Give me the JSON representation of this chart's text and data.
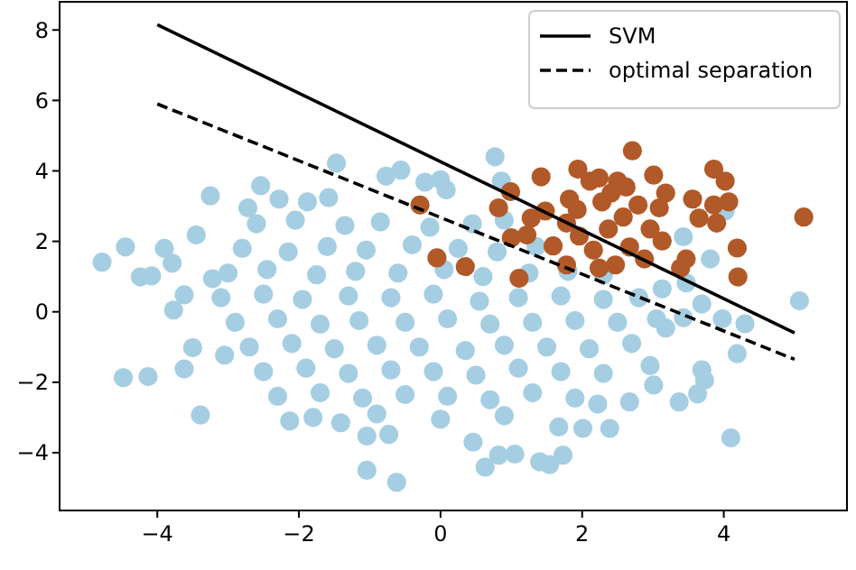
{
  "chart_data": {
    "type": "scatter",
    "xlim": [
      -5.38,
      5.74
    ],
    "ylim": [
      -5.64,
      8.8
    ],
    "xticks": [
      {
        "value": -4,
        "label": "−4"
      },
      {
        "value": -2,
        "label": "−2"
      },
      0,
      2,
      4
    ],
    "yticks": [
      {
        "value": -4,
        "label": "−4"
      },
      {
        "value": -2,
        "label": "−2"
      },
      0,
      2,
      4,
      6,
      8
    ],
    "grid": false,
    "legend": "top right",
    "series": [
      {
        "marker": "circle",
        "color": "#a6cee3",
        "x": [
          -4.78,
          -4.45,
          -4.24,
          -4.08,
          -3.9,
          -3.79,
          -3.77,
          -3.62,
          -3.45,
          -3.25,
          -3.22,
          -4.48,
          -4.13,
          -3.62,
          -3.5,
          -3.39,
          -3.05,
          -2.72,
          -2.54,
          -2.28,
          -2.13,
          -1.88,
          -1.58,
          -1.47,
          -1.41,
          -1.04,
          -1.04,
          -0.77,
          -0.73,
          -0.62,
          -0.56,
          -0.22,
          0,
          0.08,
          0.46,
          0.63,
          0.77,
          0.82,
          1.05,
          0.86,
          1.4,
          1.54,
          1.73,
          1.67,
          2.01,
          2.39,
          2.22,
          2.67,
          3.01,
          2.96,
          3.37,
          3.63,
          3.73,
          3.69,
          4.1,
          4.19,
          4.3,
          5.07,
          3.43,
          3.81,
          4.02,
          3.47,
          3.13,
          3.69,
          3.43,
          3.18,
          3.98,
          -2.6,
          -2.05,
          -1.35,
          -0.85,
          -0.15,
          0.45,
          0.9,
          -2.8,
          -2.15,
          -1.6,
          -1.05,
          -0.4,
          0.25,
          0.8,
          1.35,
          -3,
          -2.45,
          -1.75,
          -1.2,
          -0.6,
          0.05,
          0.6,
          1.25,
          1.8,
          2.3,
          -3.1,
          -2.5,
          -1.95,
          -1.3,
          -0.7,
          -0.1,
          0.55,
          1.1,
          1.7,
          2.3,
          2.8,
          -2.9,
          -2.3,
          -1.7,
          -1.15,
          -0.5,
          0.1,
          0.7,
          1.3,
          1.9,
          2.5,
          3.05,
          -2.7,
          -2.1,
          -1.5,
          -0.9,
          -0.3,
          0.35,
          0.9,
          1.5,
          2.1,
          2.7,
          -2.5,
          -1.9,
          -1.3,
          -0.7,
          -0.1,
          0.5,
          1.1,
          1.7,
          2.3,
          -2.3,
          -1.7,
          -1.1,
          -0.5,
          0.1,
          0.7,
          1.3,
          1.9,
          -1.8,
          -0.9,
          0,
          0.9
        ],
        "values": [
          1.41,
          1.84,
          0.99,
          1.02,
          1.8,
          1.38,
          0.05,
          0.48,
          2.18,
          3.29,
          0.94,
          -1.87,
          -1.84,
          -1.62,
          -1.02,
          -2.93,
          -1.23,
          2.95,
          3.58,
          3.2,
          -3.1,
          3.12,
          3.24,
          4.22,
          -3.15,
          -3.53,
          -4.5,
          3.85,
          -3.48,
          -4.84,
          4.02,
          3.68,
          3.75,
          3.46,
          -3.7,
          -4.41,
          4.4,
          -4.07,
          -4.04,
          3.71,
          -4.26,
          -4.34,
          -4.07,
          -3.27,
          -3.31,
          -3.31,
          -2.62,
          -2.56,
          -2.08,
          -1.53,
          -2.56,
          -2.33,
          -1.94,
          -1.65,
          -3.58,
          -1.19,
          -0.34,
          0.31,
          2.13,
          1.5,
          2.86,
          0.82,
          0.65,
          0.22,
          -0.17,
          -0.46,
          -0.2,
          2.5,
          2.6,
          2.45,
          2.55,
          2.4,
          2.5,
          2.6,
          1.8,
          1.7,
          1.85,
          1.75,
          1.9,
          1.8,
          1.7,
          1.85,
          1.1,
          1.2,
          1.05,
          1.15,
          1.1,
          1.2,
          1.0,
          1.1,
          1.15,
          1.05,
          0.4,
          0.5,
          0.35,
          0.45,
          0.4,
          0.5,
          0.3,
          0.4,
          0.45,
          0.35,
          0.4,
          -0.3,
          -0.2,
          -0.35,
          -0.25,
          -0.3,
          -0.2,
          -0.35,
          -0.3,
          -0.25,
          -0.3,
          -0.2,
          -1.0,
          -0.9,
          -1.05,
          -0.95,
          -1.0,
          -1.1,
          -0.95,
          -1.0,
          -1.05,
          -0.9,
          -1.7,
          -1.6,
          -1.75,
          -1.65,
          -1.7,
          -1.8,
          -1.6,
          -1.7,
          -1.75,
          -2.4,
          -2.3,
          -2.45,
          -2.35,
          -2.4,
          -2.5,
          -2.3,
          -2.45,
          -3.0,
          -2.9,
          -3.05,
          -2.95
        ]
      },
      {
        "marker": "circle",
        "color": "#b15928",
        "x": [
          -0.29,
          -0.05,
          0.35,
          1.11,
          0.82,
          0.99,
          1.0,
          1.22,
          1.28,
          1.42,
          1.48,
          1.59,
          1.78,
          1.82,
          1.93,
          1.94,
          1.96,
          2.11,
          2.16,
          2.24,
          2.28,
          2.37,
          2.47,
          2.5,
          2.58,
          2.67,
          2.71,
          2.79,
          2.88,
          2.96,
          3.01,
          3.09,
          3.18,
          3.13,
          3.39,
          3.47,
          3.56,
          3.65,
          3.86,
          3.9,
          4.02,
          4.07,
          4.19,
          4.2,
          5.13,
          3.86,
          2.62,
          2.41,
          1.78,
          2.24
        ],
        "values": [
          3.03,
          1.53,
          1.28,
          0.95,
          2.95,
          3.41,
          2.1,
          2.18,
          2.66,
          3.83,
          2.86,
          1.87,
          1.33,
          3.2,
          2.9,
          4.05,
          2.15,
          3.71,
          1.75,
          3.8,
          3.12,
          2.35,
          1.33,
          3.71,
          2.69,
          1.84,
          4.57,
          3.03,
          1.5,
          2.35,
          3.88,
          2.95,
          3.37,
          2.01,
          1.24,
          1.5,
          3.2,
          2.66,
          4.05,
          2.52,
          3.71,
          3.12,
          1.81,
          0.99,
          2.69,
          3.03,
          3.54,
          3.37,
          2.52,
          1.24
        ]
      },
      {
        "type": "line",
        "name": "SVM",
        "color": "#000000",
        "line_style": "solid",
        "x": [
          -4,
          5
        ],
        "values": [
          8.15,
          -0.6
        ]
      },
      {
        "type": "line",
        "name": "optimal separation",
        "color": "#000000",
        "line_style": "dashed",
        "x": [
          -4,
          5
        ],
        "values": [
          5.9,
          -1.35
        ]
      }
    ]
  }
}
